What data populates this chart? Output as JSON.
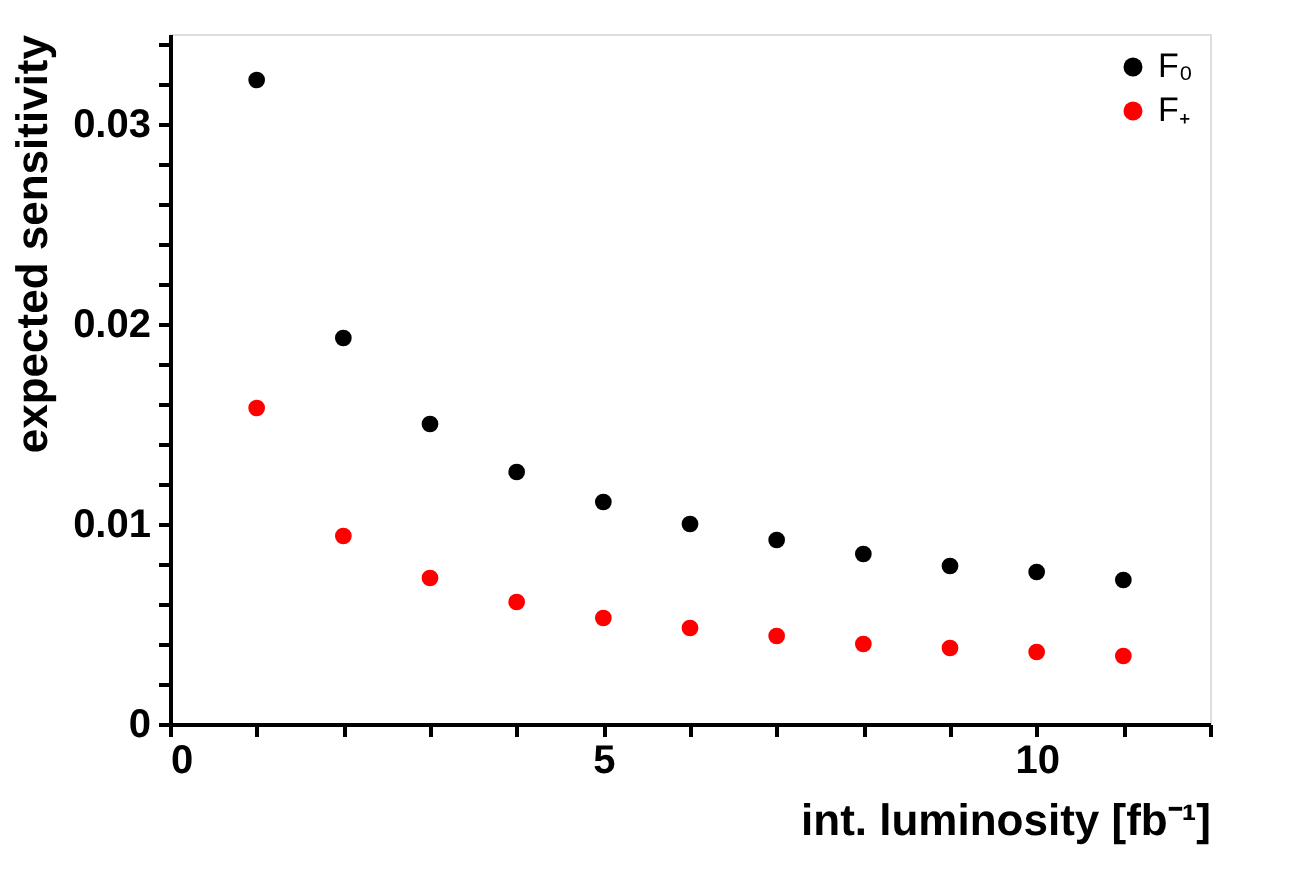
{
  "chart_data": {
    "type": "scatter",
    "xlabel": "int. luminosity [fb⁻¹]",
    "ylabel": "expected sensitivity",
    "x": [
      1,
      2,
      3,
      4,
      5,
      6,
      7,
      8,
      9,
      10,
      11
    ],
    "series": [
      {
        "name": "F₀",
        "color": "#000000",
        "values": [
          0.0322,
          0.0193,
          0.015,
          0.0126,
          0.0111,
          0.01,
          0.0092,
          0.0085,
          0.0079,
          0.0076,
          0.0072
        ]
      },
      {
        "name": "F₊",
        "color": "#ff0000",
        "values": [
          0.0158,
          0.0094,
          0.0073,
          0.0061,
          0.0053,
          0.0048,
          0.0044,
          0.004,
          0.0038,
          0.0036,
          0.0034
        ]
      }
    ],
    "xlim": [
      0,
      12
    ],
    "xticks": [
      0,
      {
        "value": 1,
        "label": null
      },
      {
        "value": 2,
        "label": null
      },
      {
        "value": 3,
        "label": null
      },
      {
        "value": 4,
        "label": null
      },
      5,
      {
        "value": 6,
        "label": null
      },
      {
        "value": 7,
        "label": null
      },
      {
        "value": 8,
        "label": null
      },
      {
        "value": 9,
        "label": null
      },
      10,
      {
        "value": 11,
        "label": null
      },
      {
        "value": 12,
        "label": null
      }
    ],
    "ylim": [
      0,
      0.0345
    ],
    "yticks": [
      0,
      {
        "value": 0.002,
        "label": null
      },
      {
        "value": 0.004,
        "label": null
      },
      {
        "value": 0.006,
        "label": null
      },
      {
        "value": 0.008,
        "label": null
      },
      0.01,
      {
        "value": 0.012,
        "label": null
      },
      {
        "value": 0.014,
        "label": null
      },
      {
        "value": 0.016,
        "label": null
      },
      {
        "value": 0.018,
        "label": null
      },
      0.02,
      {
        "value": 0.022,
        "label": null
      },
      {
        "value": 0.024,
        "label": null
      },
      {
        "value": 0.026,
        "label": null
      },
      {
        "value": 0.028,
        "label": null
      },
      0.03,
      {
        "value": 0.032,
        "label": null
      },
      {
        "value": 0.034,
        "label": null
      }
    ],
    "grid": false,
    "legend": "top right",
    "marker": "circle"
  }
}
